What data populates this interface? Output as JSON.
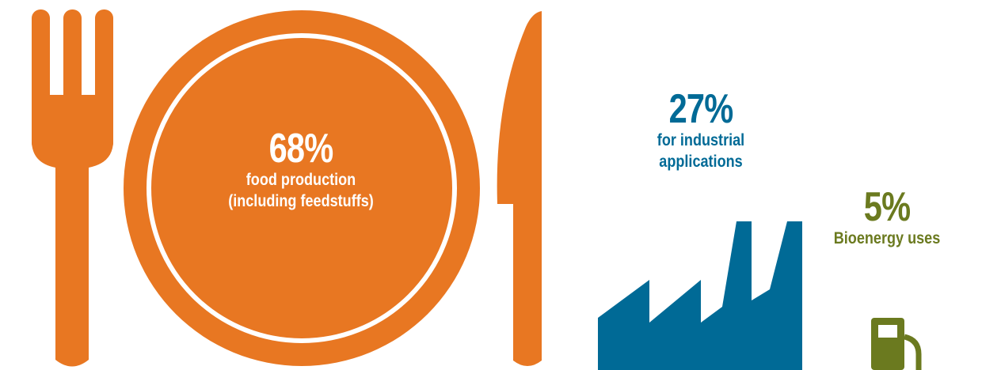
{
  "chart_data": {
    "type": "pie",
    "title": "",
    "series": [
      {
        "label": "food production (including feedstuffs)",
        "value": 68,
        "display": "68%",
        "color": "#E87722",
        "icon": "fork-plate-knife-icon"
      },
      {
        "label": "for industrial applications",
        "value": 27,
        "display": "27%",
        "color": "#006A96",
        "icon": "factory-icon"
      },
      {
        "label": "Bioenergy uses",
        "value": 5,
        "display": "5%",
        "color": "#6B7A1F",
        "icon": "fuel-pump-icon"
      }
    ]
  },
  "food": {
    "pct": "68%",
    "line1": "food production",
    "line2": "(including feedstuffs)"
  },
  "industry": {
    "pct": "27%",
    "line1": "for industrial",
    "line2": "applications"
  },
  "bio": {
    "pct": "5%",
    "line1": "Bioenergy uses"
  },
  "colors": {
    "orange": "#E87722",
    "blue": "#006A96",
    "green": "#6B7A1F",
    "white": "#FFFFFF"
  }
}
